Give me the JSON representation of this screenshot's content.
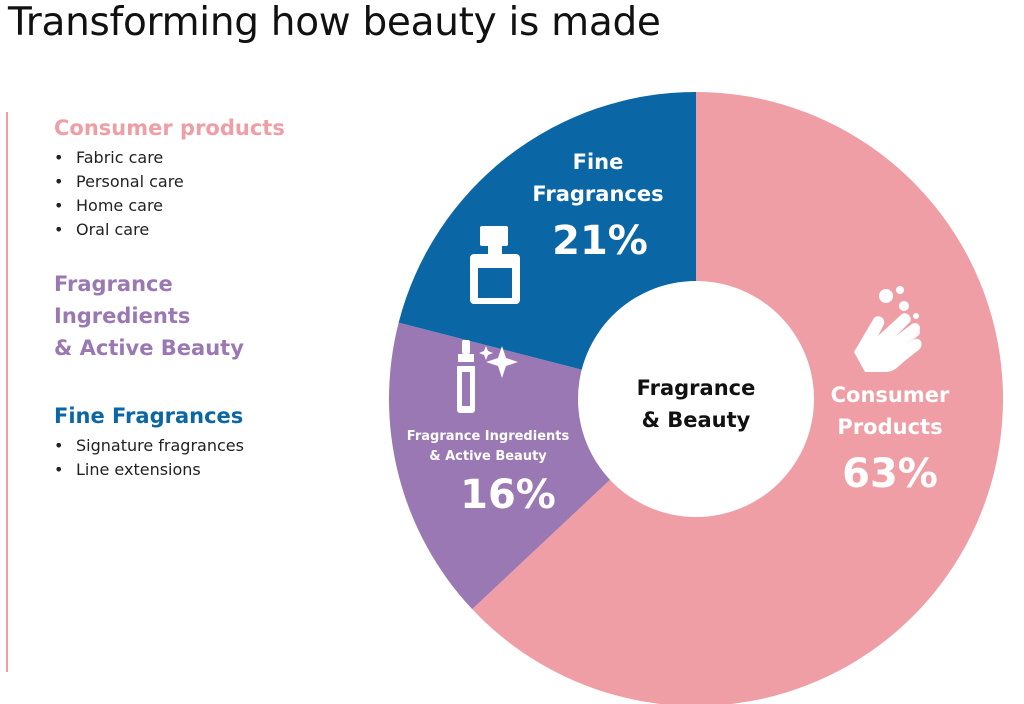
{
  "title": "Transforming how beauty is made",
  "legend": {
    "consumer": {
      "heading": "Consumer products",
      "color": "#ef9ea5",
      "items": [
        "Fabric care",
        "Personal care",
        "Home care",
        "Oral care"
      ]
    },
    "fragrance_ingredients": {
      "heading_lines": [
        "Fragrance",
        "Ingredients",
        "& Active Beauty"
      ],
      "color": "#9a78b3"
    },
    "fine": {
      "heading": "Fine Fragrances",
      "color": "#0a66a4",
      "items": [
        "Signature fragrances",
        "Line extensions"
      ]
    }
  },
  "chart_data": {
    "type": "pie",
    "donut": true,
    "center_label_lines": [
      "Fragrance",
      "& Beauty"
    ],
    "slices": [
      {
        "label_lines": [
          "Consumer",
          "Products"
        ],
        "value": 63,
        "value_label": "63%",
        "color": "#ef9ea5",
        "icon": "hands-washing-icon"
      },
      {
        "label_lines": [
          "Fragrance Ingredients",
          "& Active Beauty"
        ],
        "value": 16,
        "value_label": "16%",
        "color": "#9a78b3",
        "icon": "dropper-sparkle-icon"
      },
      {
        "label_lines": [
          "Fine",
          "Fragrances"
        ],
        "value": 21,
        "value_label": "21%",
        "color": "#0a66a4",
        "icon": "perfume-bottle-icon"
      }
    ]
  }
}
